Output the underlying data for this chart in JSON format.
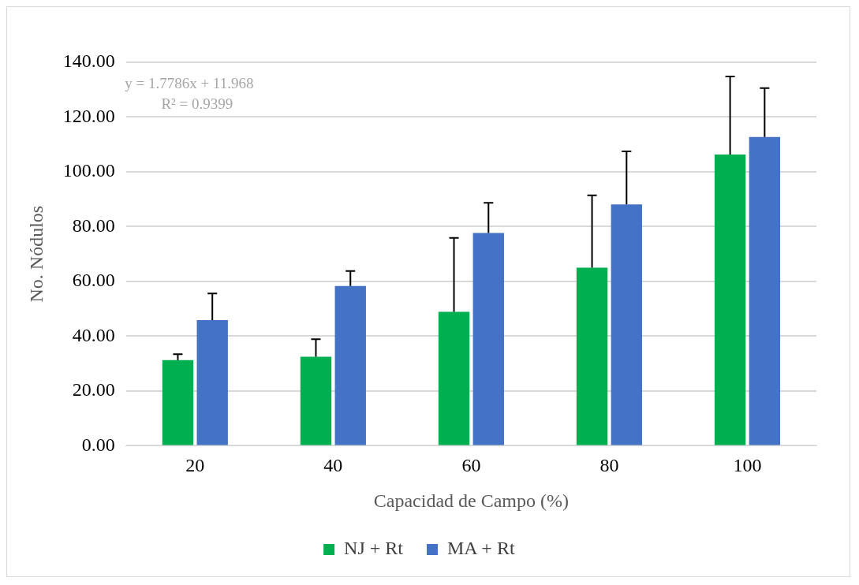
{
  "chart_data": {
    "type": "bar",
    "xlabel": "Capacidad de Campo (%)",
    "ylabel": "No. Nódulos",
    "categories": [
      "20",
      "40",
      "60",
      "80",
      "100"
    ],
    "series": [
      {
        "name": "NJ + Rt",
        "color": "#00b050",
        "values": [
          31.3,
          32.5,
          48.9,
          65.0,
          106.3
        ],
        "errors": [
          [
            31.3,
            33.4
          ],
          [
            32.5,
            38.9
          ],
          [
            48.9,
            75.9
          ],
          [
            65.0,
            91.4
          ],
          [
            106.3,
            134.8
          ]
        ]
      },
      {
        "name": "MA + Rt",
        "color": "#4472c4",
        "values": [
          45.9,
          58.3,
          77.7,
          88.1,
          112.7
        ],
        "errors": [
          [
            45.9,
            55.6
          ],
          [
            58.3,
            63.8
          ],
          [
            77.7,
            88.7
          ],
          [
            88.1,
            107.5
          ],
          [
            112.7,
            130.6
          ]
        ]
      }
    ],
    "ylim": [
      0,
      140
    ],
    "yticks": [
      {
        "value": 0,
        "label": "0.00"
      },
      {
        "value": 20,
        "label": "20.00"
      },
      {
        "value": 40,
        "label": "40.00"
      },
      {
        "value": 60,
        "label": "60.00"
      },
      {
        "value": 80,
        "label": "80.00"
      },
      {
        "value": 100,
        "label": "100.00"
      },
      {
        "value": 120,
        "label": "120.00"
      },
      {
        "value": 140,
        "label": "140.00"
      }
    ],
    "grid": "y",
    "legend": "bottom",
    "annotations": [
      "y = 1.7786x + 11.968",
      "R² = 0.9399"
    ]
  }
}
